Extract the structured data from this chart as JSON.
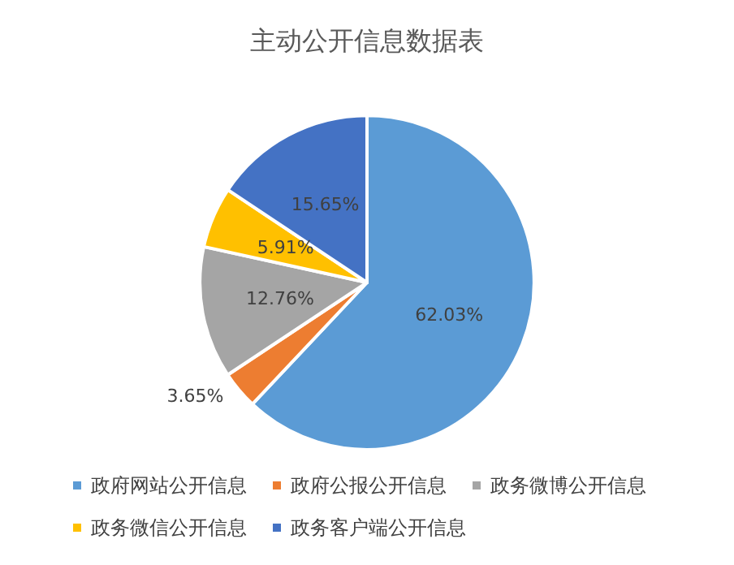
{
  "chart_data": {
    "type": "pie",
    "title": "主动公开信息数据表",
    "categories": [
      "政府网站公开信息",
      "政府公报公开信息",
      "政务微博公开信息",
      "政务微信公开信息",
      "政务客户端公开信息"
    ],
    "values": [
      62.03,
      3.65,
      12.76,
      5.91,
      15.65
    ],
    "value_labels": [
      "62.03%",
      "3.65%",
      "12.76%",
      "5.91%",
      "15.65%"
    ],
    "colors": [
      "#5b9bd5",
      "#ed7d31",
      "#a5a5a5",
      "#ffc000",
      "#4472c4"
    ],
    "legend": "bottom"
  }
}
